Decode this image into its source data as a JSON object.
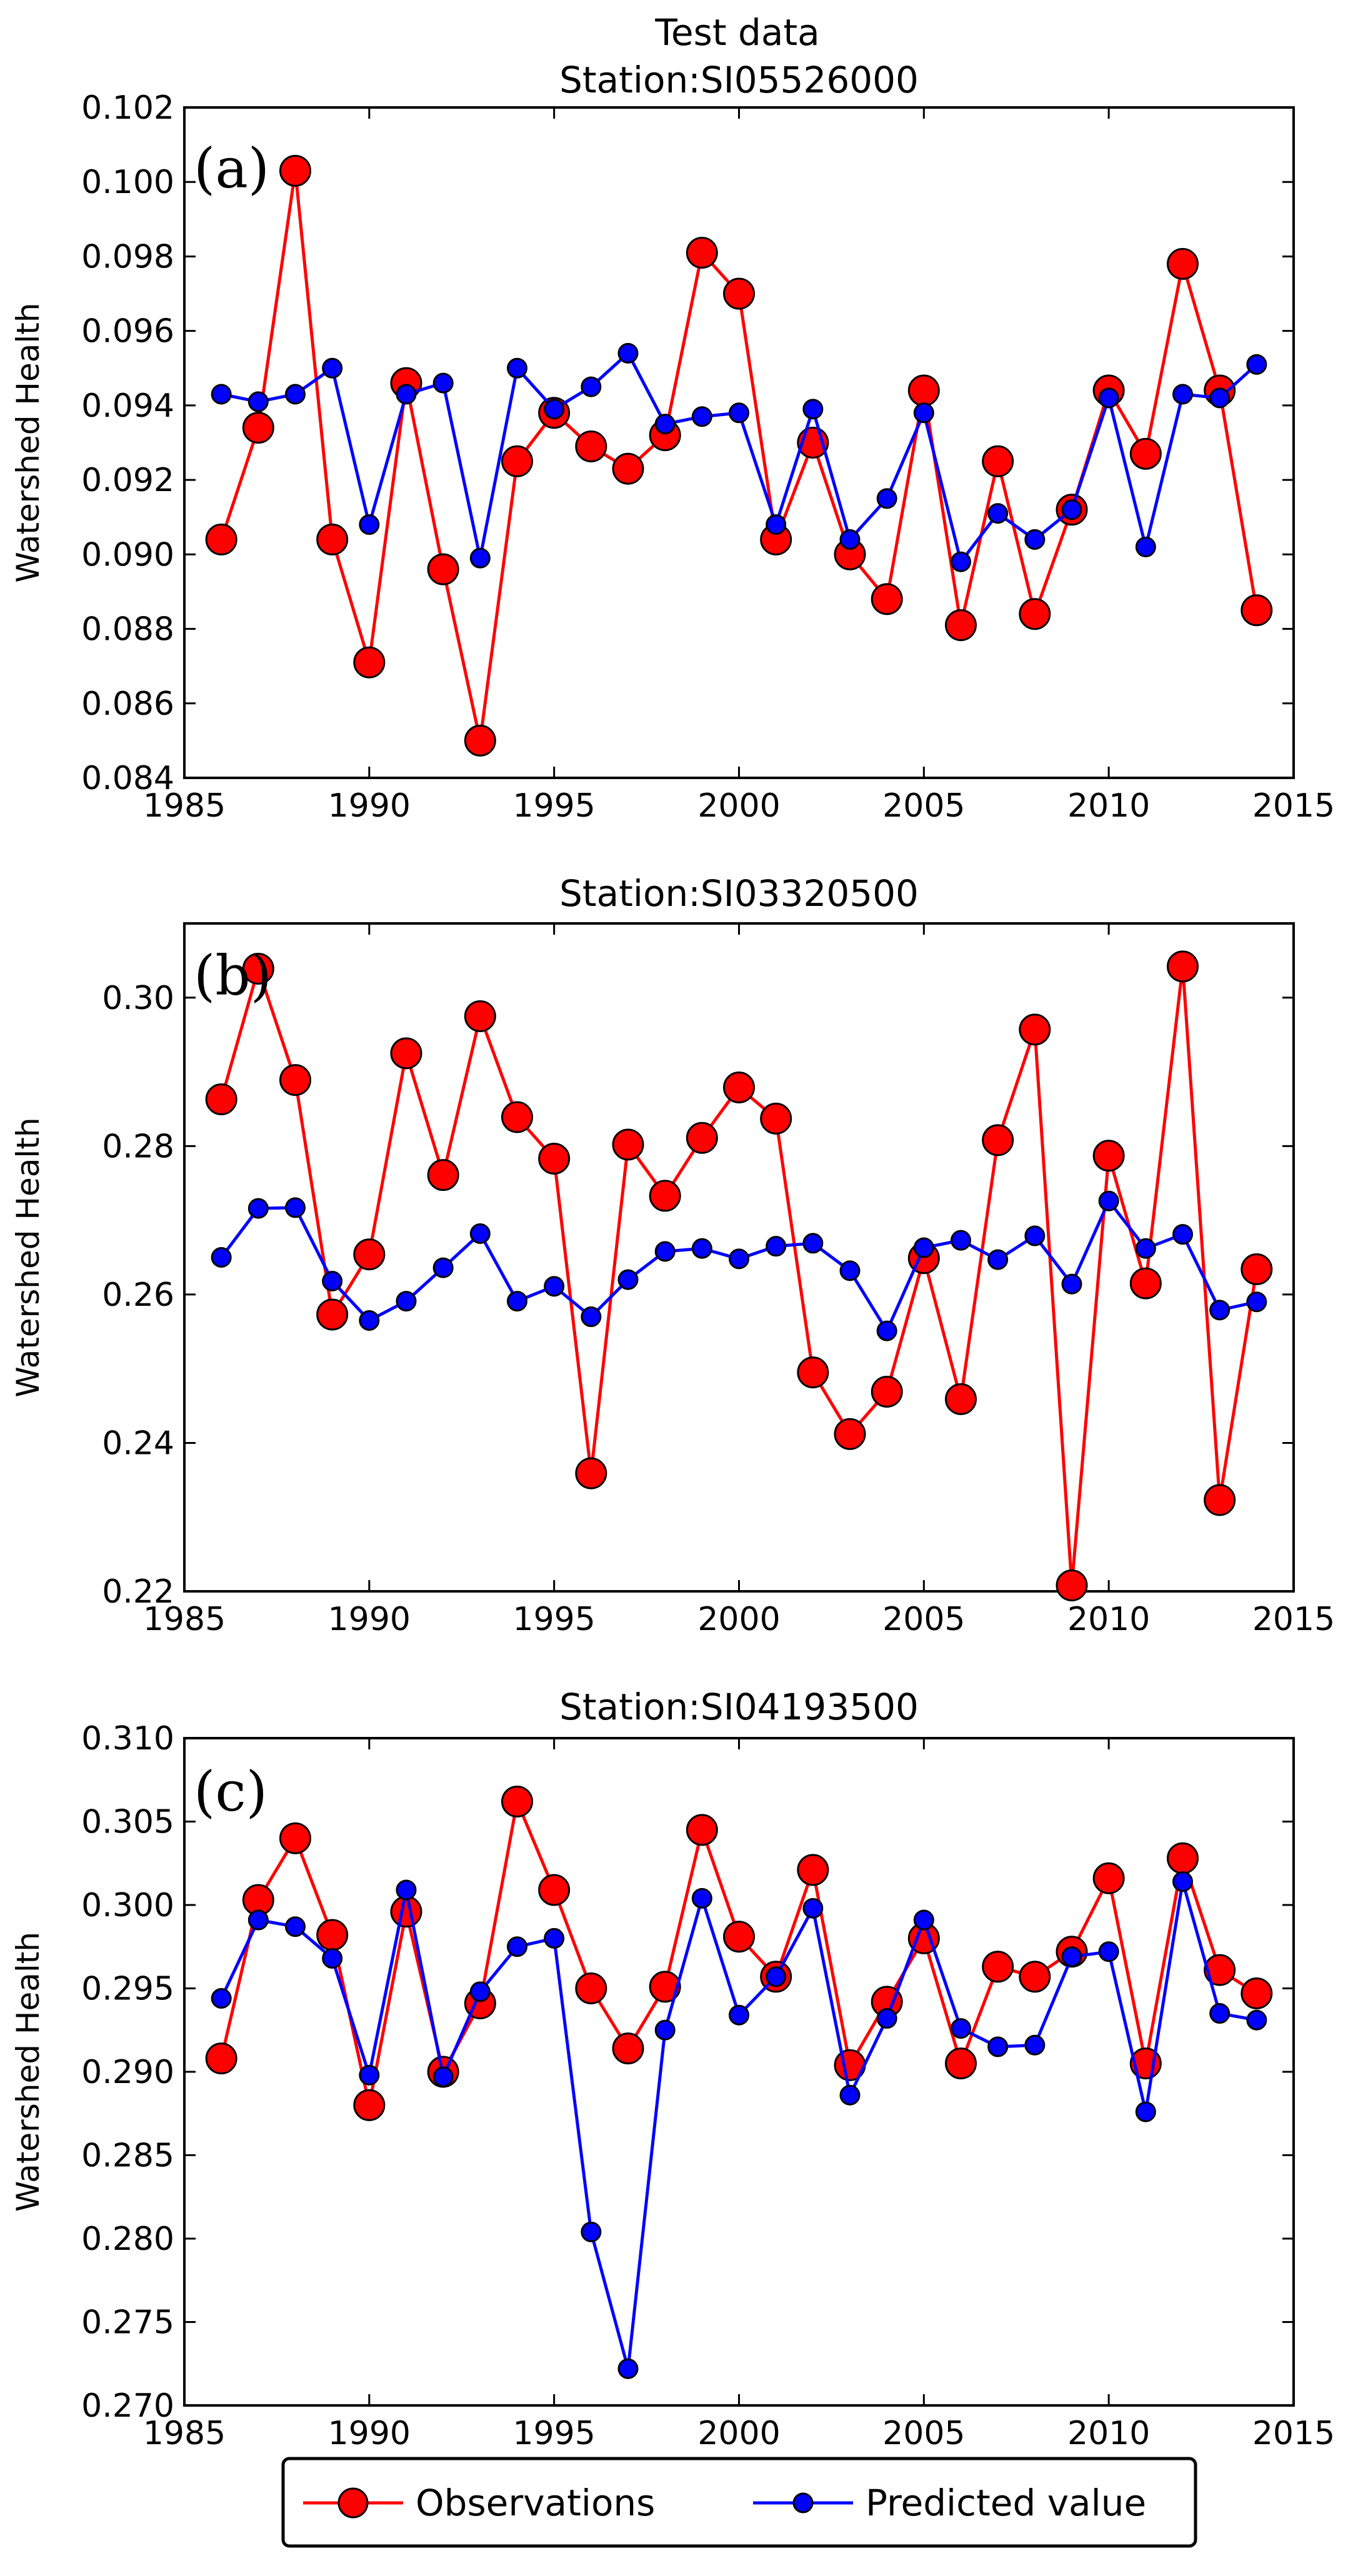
{
  "figure_title": "Test data",
  "colors": {
    "observations": "#ff0000",
    "predicted": "#0000ff",
    "axis": "#000000"
  },
  "legend": {
    "observations_label": "Observations",
    "predicted_label": "Predicted value",
    "placement": "bottom-center"
  },
  "chart_data": [
    {
      "type": "line",
      "panel_label": "(a)",
      "title": "Station:SI05526000",
      "xlabel": "",
      "ylabel": "Watershed Health",
      "xlim": [
        1985,
        2015
      ],
      "ylim": [
        0.084,
        0.102
      ],
      "xticks": [
        1985,
        1990,
        1995,
        2000,
        2005,
        2010,
        2015
      ],
      "xtick_labels": [
        "1985",
        "1990",
        "1995",
        "2000",
        "2005",
        "2010",
        "2015"
      ],
      "yticks": [
        0.084,
        0.086,
        0.088,
        0.09,
        0.092,
        0.094,
        0.096,
        0.098,
        0.1,
        0.102
      ],
      "ytick_labels": [
        "0.084",
        "0.086",
        "0.088",
        "0.090",
        "0.092",
        "0.094",
        "0.096",
        "0.098",
        "0.100",
        "0.102"
      ],
      "grid": false,
      "x": [
        1986,
        1987,
        1988,
        1989,
        1990,
        1991,
        1992,
        1993,
        1994,
        1995,
        1996,
        1997,
        1998,
        1999,
        2000,
        2001,
        2002,
        2003,
        2004,
        2005,
        2006,
        2007,
        2008,
        2009,
        2010,
        2011,
        2012,
        2013,
        2014
      ],
      "series": [
        {
          "name": "Observations",
          "values": [
            0.0904,
            0.0934,
            0.1003,
            0.0904,
            0.0871,
            0.0946,
            0.0896,
            0.085,
            0.0925,
            0.0938,
            0.0929,
            0.0923,
            0.0932,
            0.0981,
            0.097,
            0.0904,
            0.093,
            0.09,
            0.0888,
            0.0944,
            0.0881,
            0.0925,
            0.0884,
            0.0912,
            0.0944,
            0.0927,
            0.0978,
            0.0944,
            0.0885
          ]
        },
        {
          "name": "Predicted value",
          "values": [
            0.0943,
            0.0941,
            0.0943,
            0.095,
            0.0908,
            0.0943,
            0.0946,
            0.0899,
            0.095,
            0.0939,
            0.0945,
            0.0954,
            0.0935,
            0.0937,
            0.0938,
            0.0908,
            0.0939,
            0.0904,
            0.0915,
            0.0938,
            0.0898,
            0.0911,
            0.0904,
            0.0912,
            0.0942,
            0.0902,
            0.0943,
            0.0942,
            0.0951
          ]
        }
      ]
    },
    {
      "type": "line",
      "panel_label": "(b)",
      "title": "Station:SI03320500",
      "xlabel": "",
      "ylabel": "Watershed Health",
      "xlim": [
        1985,
        2015
      ],
      "ylim": [
        0.22,
        0.31
      ],
      "xticks": [
        1985,
        1990,
        1995,
        2000,
        2005,
        2010,
        2015
      ],
      "xtick_labels": [
        "1985",
        "1990",
        "1995",
        "2000",
        "2005",
        "2010",
        "2015"
      ],
      "yticks": [
        0.22,
        0.24,
        0.26,
        0.28,
        0.3
      ],
      "ytick_labels": [
        "0.22",
        "0.24",
        "0.26",
        "0.28",
        "0.30"
      ],
      "grid": false,
      "x": [
        1986,
        1987,
        1988,
        1989,
        1990,
        1991,
        1992,
        1993,
        1994,
        1995,
        1996,
        1997,
        1998,
        1999,
        2000,
        2001,
        2002,
        2003,
        2004,
        2005,
        2006,
        2007,
        2008,
        2009,
        2010,
        2011,
        2012,
        2013,
        2014
      ],
      "series": [
        {
          "name": "Observations",
          "values": [
            0.2863,
            0.3039,
            0.2889,
            0.2573,
            0.2654,
            0.2925,
            0.2761,
            0.2975,
            0.2839,
            0.2783,
            0.2359,
            0.2802,
            0.2733,
            0.2811,
            0.2879,
            0.2837,
            0.2495,
            0.2412,
            0.2469,
            0.2649,
            0.2459,
            0.2808,
            0.2957,
            0.2208,
            0.2787,
            0.2615,
            0.3042,
            0.2323,
            0.2634
          ]
        },
        {
          "name": "Predicted value",
          "values": [
            0.265,
            0.2716,
            0.2717,
            0.2618,
            0.2565,
            0.2591,
            0.2636,
            0.2682,
            0.2591,
            0.2611,
            0.257,
            0.262,
            0.2658,
            0.2662,
            0.2648,
            0.2665,
            0.2669,
            0.2632,
            0.2551,
            0.2663,
            0.2673,
            0.2647,
            0.2679,
            0.2614,
            0.2726,
            0.2662,
            0.2681,
            0.2579,
            0.259
          ]
        }
      ]
    },
    {
      "type": "line",
      "panel_label": "(c)",
      "title": "Station:SI04193500",
      "xlabel": "",
      "ylabel": "Watershed Health",
      "xlim": [
        1985,
        2015
      ],
      "ylim": [
        0.27,
        0.31
      ],
      "xticks": [
        1985,
        1990,
        1995,
        2000,
        2005,
        2010,
        2015
      ],
      "xtick_labels": [
        "1985",
        "1990",
        "1995",
        "2000",
        "2005",
        "2010",
        "2015"
      ],
      "yticks": [
        0.27,
        0.275,
        0.28,
        0.285,
        0.29,
        0.295,
        0.3,
        0.305,
        0.31
      ],
      "ytick_labels": [
        "0.270",
        "0.275",
        "0.280",
        "0.285",
        "0.290",
        "0.295",
        "0.300",
        "0.305",
        "0.310"
      ],
      "grid": false,
      "x": [
        1986,
        1987,
        1988,
        1989,
        1990,
        1991,
        1992,
        1993,
        1994,
        1995,
        1996,
        1997,
        1998,
        1999,
        2000,
        2001,
        2002,
        2003,
        2004,
        2005,
        2006,
        2007,
        2008,
        2009,
        2010,
        2011,
        2012,
        2013,
        2014
      ],
      "series": [
        {
          "name": "Observations",
          "values": [
            0.2908,
            0.3003,
            0.304,
            0.2982,
            0.288,
            0.2996,
            0.29,
            0.2941,
            0.3062,
            0.3009,
            0.295,
            0.2914,
            0.2951,
            0.3045,
            0.2981,
            0.2957,
            0.3021,
            0.2904,
            0.2942,
            0.298,
            0.2905,
            0.2963,
            0.2957,
            0.2972,
            0.3016,
            0.2905,
            0.3028,
            0.2961,
            0.2947
          ]
        },
        {
          "name": "Predicted value",
          "values": [
            0.2944,
            0.2991,
            0.2987,
            0.2968,
            0.2898,
            0.3009,
            0.2897,
            0.2948,
            0.2975,
            0.298,
            0.2804,
            0.2722,
            0.2925,
            0.3004,
            0.2934,
            0.2957,
            0.2998,
            0.2886,
            0.2932,
            0.2991,
            0.2926,
            0.2915,
            0.2916,
            0.2969,
            0.2972,
            0.2876,
            0.3014,
            0.2935,
            0.2931
          ]
        }
      ]
    }
  ]
}
